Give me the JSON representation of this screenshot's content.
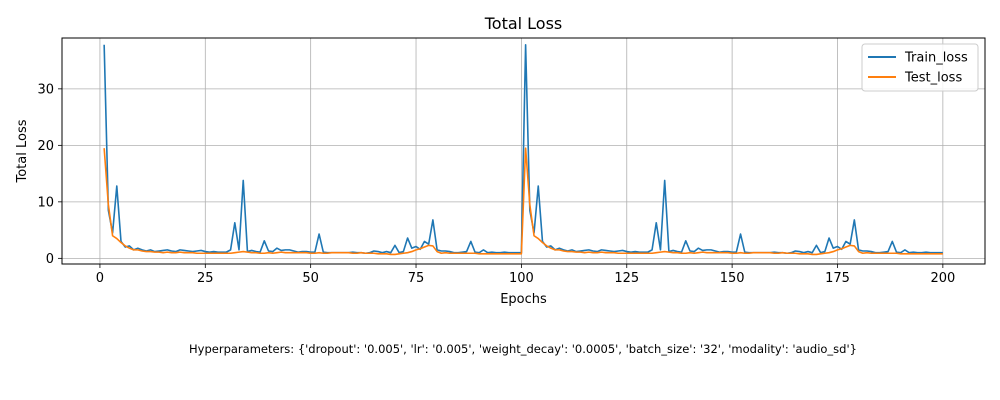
{
  "chart_data": {
    "type": "line",
    "title": "Total Loss",
    "xlabel": "Epochs",
    "ylabel": "Total Loss",
    "xlim": [
      -9,
      210
    ],
    "ylim": [
      -1,
      39
    ],
    "xticks": [
      0,
      25,
      50,
      75,
      100,
      125,
      150,
      175,
      200
    ],
    "yticks": [
      0,
      10,
      20,
      30
    ],
    "grid": true,
    "legend_position": "top-right",
    "series": [
      {
        "name": "Train_loss",
        "color": "#1f77b4",
        "x": [
          1,
          2,
          3,
          4,
          5,
          6,
          7,
          8,
          9,
          10,
          11,
          12,
          13,
          14,
          15,
          16,
          17,
          18,
          19,
          20,
          21,
          22,
          23,
          24,
          25,
          26,
          27,
          28,
          29,
          30,
          31,
          32,
          33,
          34,
          35,
          36,
          37,
          38,
          39,
          40,
          41,
          42,
          43,
          44,
          45,
          46,
          47,
          48,
          49,
          50,
          51,
          52,
          53,
          54,
          55,
          56,
          57,
          58,
          59,
          60,
          61,
          62,
          63,
          64,
          65,
          66,
          67,
          68,
          69,
          70,
          71,
          72,
          73,
          74,
          75,
          76,
          77,
          78,
          79,
          80,
          81,
          82,
          83,
          84,
          85,
          86,
          87,
          88,
          89,
          90,
          91,
          92,
          93,
          94,
          95,
          96,
          97,
          98,
          99,
          100,
          101,
          102,
          103,
          104,
          105,
          106,
          107,
          108,
          109,
          110,
          111,
          112,
          113,
          114,
          115,
          116,
          117,
          118,
          119,
          120,
          121,
          122,
          123,
          124,
          125,
          126,
          127,
          128,
          129,
          130,
          131,
          132,
          133,
          134,
          135,
          136,
          137,
          138,
          139,
          140,
          141,
          142,
          143,
          144,
          145,
          146,
          147,
          148,
          149,
          150,
          151,
          152,
          153,
          154,
          155,
          156,
          157,
          158,
          159,
          160,
          161,
          162,
          163,
          164,
          165,
          166,
          167,
          168,
          169,
          170,
          171,
          172,
          173,
          174,
          175,
          176,
          177,
          178,
          179,
          180,
          181,
          182,
          183,
          184,
          185,
          186,
          187,
          188,
          189,
          190,
          191,
          192,
          193,
          194,
          195,
          196,
          197,
          198,
          199,
          200
        ],
        "y": [
          37.8,
          8.5,
          4.5,
          12.8,
          3.0,
          2.0,
          2.2,
          1.5,
          1.8,
          1.5,
          1.3,
          1.5,
          1.2,
          1.3,
          1.4,
          1.5,
          1.3,
          1.2,
          1.5,
          1.4,
          1.3,
          1.2,
          1.3,
          1.4,
          1.2,
          1.1,
          1.2,
          1.1,
          1.1,
          1.1,
          1.5,
          6.3,
          1.5,
          13.8,
          1.2,
          1.4,
          1.2,
          1.1,
          3.1,
          1.3,
          1.2,
          1.8,
          1.4,
          1.5,
          1.5,
          1.3,
          1.1,
          1.2,
          1.2,
          1.1,
          1.1,
          4.3,
          1.1,
          1.0,
          1.0,
          1.0,
          1.0,
          1.0,
          1.0,
          1.1,
          1.0,
          1.0,
          0.9,
          1.0,
          1.3,
          1.2,
          1.0,
          1.2,
          1.0,
          2.3,
          1.0,
          1.2,
          3.6,
          1.8,
          2.1,
          1.6,
          3.0,
          2.5,
          6.8,
          1.5,
          1.3,
          1.3,
          1.2,
          1.0,
          1.0,
          1.1,
          1.2,
          3.0,
          1.1,
          1.0,
          1.5,
          1.0,
          1.1,
          1.0,
          1.0,
          1.1,
          1.0,
          1.0,
          1.0,
          1.0,
          37.8,
          8.5,
          4.5,
          12.8,
          3.0,
          2.0,
          2.2,
          1.5,
          1.8,
          1.5,
          1.3,
          1.5,
          1.2,
          1.3,
          1.4,
          1.5,
          1.3,
          1.2,
          1.5,
          1.4,
          1.3,
          1.2,
          1.3,
          1.4,
          1.2,
          1.1,
          1.2,
          1.1,
          1.1,
          1.1,
          1.5,
          6.3,
          1.5,
          13.8,
          1.2,
          1.4,
          1.2,
          1.1,
          3.1,
          1.3,
          1.2,
          1.8,
          1.4,
          1.5,
          1.5,
          1.3,
          1.1,
          1.2,
          1.2,
          1.1,
          1.1,
          4.3,
          1.1,
          1.0,
          1.0,
          1.0,
          1.0,
          1.0,
          1.0,
          1.1,
          1.0,
          1.0,
          0.9,
          1.0,
          1.3,
          1.2,
          1.0,
          1.2,
          1.0,
          2.3,
          1.0,
          1.2,
          3.6,
          1.8,
          2.1,
          1.6,
          3.0,
          2.5,
          6.8,
          1.5,
          1.3,
          1.3,
          1.2,
          1.0,
          1.0,
          1.1,
          1.2,
          3.0,
          1.1,
          1.0,
          1.5,
          1.0,
          1.1,
          1.0,
          1.0,
          1.1,
          1.0,
          1.0,
          1.0,
          1.0
        ]
      },
      {
        "name": "Test_loss",
        "color": "#ff7f0e",
        "x": [
          1,
          2,
          3,
          4,
          5,
          6,
          7,
          8,
          9,
          10,
          11,
          12,
          13,
          14,
          15,
          16,
          17,
          18,
          19,
          20,
          21,
          22,
          23,
          24,
          25,
          26,
          27,
          28,
          29,
          30,
          31,
          32,
          33,
          34,
          35,
          36,
          37,
          38,
          39,
          40,
          41,
          42,
          43,
          44,
          45,
          46,
          47,
          48,
          49,
          50,
          51,
          52,
          53,
          54,
          55,
          56,
          57,
          58,
          59,
          60,
          61,
          62,
          63,
          64,
          65,
          66,
          67,
          68,
          69,
          70,
          71,
          72,
          73,
          74,
          75,
          76,
          77,
          78,
          79,
          80,
          81,
          82,
          83,
          84,
          85,
          86,
          87,
          88,
          89,
          90,
          91,
          92,
          93,
          94,
          95,
          96,
          97,
          98,
          99,
          100,
          101,
          102,
          103,
          104,
          105,
          106,
          107,
          108,
          109,
          110,
          111,
          112,
          113,
          114,
          115,
          116,
          117,
          118,
          119,
          120,
          121,
          122,
          123,
          124,
          125,
          126,
          127,
          128,
          129,
          130,
          131,
          132,
          133,
          134,
          135,
          136,
          137,
          138,
          139,
          140,
          141,
          142,
          143,
          144,
          145,
          146,
          147,
          148,
          149,
          150,
          151,
          152,
          153,
          154,
          155,
          156,
          157,
          158,
          159,
          160,
          161,
          162,
          163,
          164,
          165,
          166,
          167,
          168,
          169,
          170,
          171,
          172,
          173,
          174,
          175,
          176,
          177,
          178,
          179,
          180,
          181,
          182,
          183,
          184,
          185,
          186,
          187,
          188,
          189,
          190,
          191,
          192,
          193,
          194,
          195,
          196,
          197,
          198,
          199,
          200
        ],
        "y": [
          19.5,
          9.5,
          4.0,
          3.5,
          2.8,
          2.2,
          1.8,
          1.5,
          1.5,
          1.3,
          1.2,
          1.2,
          1.1,
          1.1,
          1.0,
          1.1,
          1.0,
          1.0,
          1.1,
          1.0,
          1.0,
          1.0,
          0.9,
          0.9,
          0.9,
          0.9,
          0.9,
          0.9,
          0.9,
          0.9,
          0.9,
          1.0,
          1.1,
          1.2,
          1.1,
          1.0,
          1.0,
          0.9,
          0.9,
          1.0,
          0.9,
          1.0,
          1.1,
          1.0,
          1.0,
          1.0,
          1.0,
          1.0,
          1.0,
          0.9,
          0.9,
          1.0,
          0.9,
          0.9,
          1.0,
          1.0,
          1.0,
          1.0,
          1.0,
          0.9,
          0.9,
          1.0,
          0.9,
          0.9,
          0.9,
          0.8,
          0.8,
          0.8,
          0.7,
          0.7,
          0.8,
          0.9,
          1.0,
          1.2,
          1.5,
          1.7,
          2.0,
          2.3,
          2.2,
          1.2,
          0.9,
          1.0,
          0.9,
          0.9,
          0.9,
          0.9,
          0.9,
          0.9,
          0.9,
          0.8,
          0.8,
          0.8,
          0.8,
          0.8,
          0.8,
          0.8,
          0.8,
          0.8,
          0.8,
          0.8,
          19.5,
          9.5,
          4.0,
          3.5,
          2.8,
          2.2,
          1.8,
          1.5,
          1.5,
          1.3,
          1.2,
          1.2,
          1.1,
          1.1,
          1.0,
          1.1,
          1.0,
          1.0,
          1.1,
          1.0,
          1.0,
          1.0,
          0.9,
          0.9,
          0.9,
          0.9,
          0.9,
          0.9,
          0.9,
          0.9,
          0.9,
          1.0,
          1.1,
          1.2,
          1.1,
          1.0,
          1.0,
          0.9,
          0.9,
          1.0,
          0.9,
          1.0,
          1.1,
          1.0,
          1.0,
          1.0,
          1.0,
          1.0,
          1.0,
          0.9,
          0.9,
          1.0,
          0.9,
          0.9,
          1.0,
          1.0,
          1.0,
          1.0,
          1.0,
          0.9,
          0.9,
          1.0,
          0.9,
          0.9,
          0.9,
          0.8,
          0.8,
          0.8,
          0.7,
          0.7,
          0.8,
          0.9,
          1.0,
          1.2,
          1.5,
          1.7,
          2.0,
          2.3,
          2.2,
          1.2,
          0.9,
          1.0,
          0.9,
          0.9,
          0.9,
          0.9,
          0.9,
          0.9,
          0.9,
          0.8,
          0.8,
          0.8,
          0.8,
          0.8,
          0.8,
          0.8,
          0.8,
          0.8,
          0.8,
          0.8
        ]
      }
    ]
  },
  "caption": "Hyperparameters: {'dropout': '0.005', 'lr': '0.005', 'weight_decay': '0.0005', 'batch_size': '32', 'modality': 'audio_sd'}"
}
